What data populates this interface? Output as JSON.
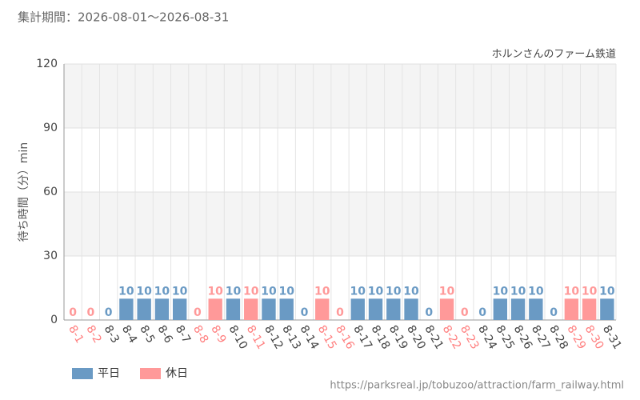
{
  "chart_data": {
    "type": "bar",
    "title": "集計期間：2026-08-01～2026-08-31",
    "subtitle": "ホルンさんのファーム鉄道",
    "y_label": "待ち時間（分）min",
    "source": "https://parksreal.jp/tobuzoo/attraction/farm_railway.html",
    "categories": [
      "8-1",
      "8-2",
      "8-3",
      "8-4",
      "8-5",
      "8-6",
      "8-7",
      "8-8",
      "8-9",
      "8-10",
      "8-11",
      "8-12",
      "8-13",
      "8-14",
      "8-15",
      "8-16",
      "8-17",
      "8-18",
      "8-19",
      "8-20",
      "8-21",
      "8-22",
      "8-23",
      "8-24",
      "8-25",
      "8-26",
      "8-27",
      "8-28",
      "8-29",
      "8-30",
      "8-31"
    ],
    "series": [
      {
        "name": "平日",
        "color": "#6a9ac4",
        "values": [
          null,
          null,
          0,
          10,
          10,
          10,
          10,
          null,
          null,
          10,
          null,
          10,
          10,
          0,
          null,
          null,
          10,
          10,
          10,
          10,
          0,
          null,
          null,
          0,
          10,
          10,
          10,
          0,
          null,
          null,
          10
        ]
      },
      {
        "name": "休日",
        "color": "#ff9999",
        "values": [
          0,
          0,
          null,
          null,
          null,
          null,
          null,
          0,
          10,
          null,
          10,
          null,
          null,
          null,
          10,
          0,
          null,
          null,
          null,
          null,
          null,
          10,
          0,
          null,
          null,
          null,
          null,
          null,
          10,
          10,
          null
        ]
      }
    ],
    "ylim": [
      0,
      120
    ],
    "yticks": [
      0,
      30,
      60,
      90,
      120
    ],
    "grid": true,
    "legend": "bottom-left"
  }
}
